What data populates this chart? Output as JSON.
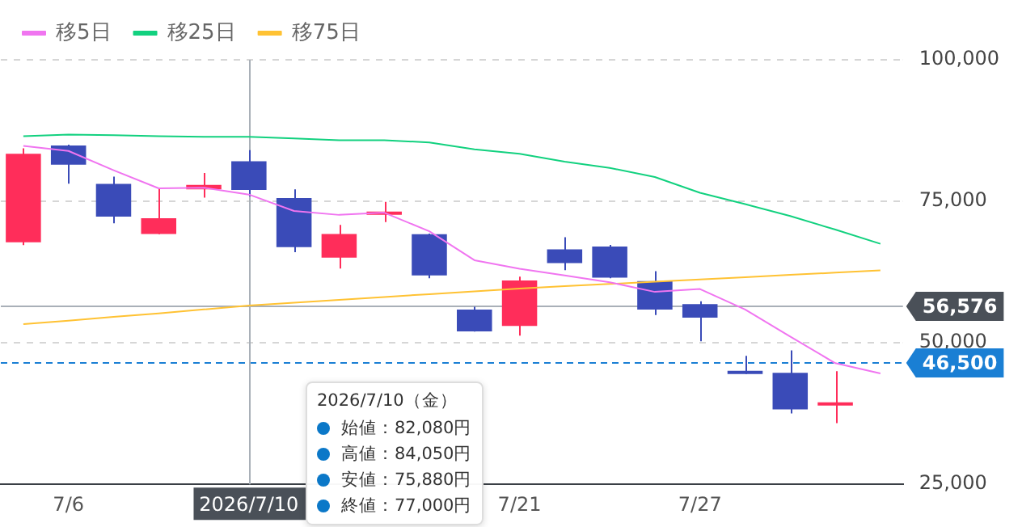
{
  "chart_data": {
    "type": "candlestick",
    "categories": [
      null,
      "7/6",
      null,
      null,
      null,
      "2026/7/10",
      null,
      null,
      null,
      null,
      null,
      "7/21",
      null,
      null,
      null,
      "7/27",
      null,
      null,
      null,
      null
    ],
    "ohlc": [
      [
        67770,
        84360,
        67280,
        83410
      ],
      [
        84850,
        85000,
        78100,
        81470
      ],
      [
        78080,
        79350,
        71130,
        72290
      ],
      [
        69220,
        77330,
        69200,
        72000
      ],
      [
        77100,
        80020,
        75670,
        77900
      ],
      [
        82080,
        84050,
        75880,
        77000
      ],
      [
        75590,
        77120,
        66030,
        66900
      ],
      [
        65060,
        70840,
        63130,
        69220
      ],
      [
        72600,
        74890,
        71330,
        73100
      ],
      [
        69200,
        69300,
        61400,
        61900
      ],
      [
        55890,
        56360,
        52000,
        52010
      ],
      [
        53000,
        61690,
        51260,
        61000
      ],
      [
        66500,
        68640,
        62840,
        64100
      ],
      [
        67000,
        67300,
        61400,
        61500
      ],
      [
        60900,
        62640,
        54910,
        55890
      ],
      [
        56850,
        57340,
        50280,
        54450
      ],
      [
        44800,
        47700,
        44500,
        44500
      ],
      [
        44690,
        48650,
        37530,
        38230
      ],
      [
        38900,
        44980,
        35800,
        39500
      ],
      null
    ],
    "colors": [
      "#ff2d5a",
      "#3a4bb8",
      "#3a4bb8",
      "#ff2d5a",
      "#ff2d5a",
      "#3a4bb8",
      "#3a4bb8",
      "#ff2d5a",
      "#ff2d5a",
      "#3a4bb8",
      "#3a4bb8",
      "#ff2d5a",
      "#3a4bb8",
      "#3a4bb8",
      "#3a4bb8",
      "#3a4bb8",
      "#3a4bb8",
      "#3a4bb8",
      "#ff2d5a",
      "#3a4bb8"
    ],
    "series": [
      {
        "name": "移5日",
        "type": "line",
        "color": "#f075f0",
        "values": [
          84800,
          83900,
          80500,
          77300,
          77400,
          76200,
          73300,
          72600,
          73000,
          69700,
          64600,
          63100,
          61900,
          60700,
          59000,
          59500,
          55900,
          51100,
          46400,
          44600
        ]
      },
      {
        "name": "移25日",
        "type": "line",
        "color": "#12d17f",
        "values": [
          86500,
          86800,
          86700,
          86500,
          86400,
          86400,
          86100,
          85800,
          85800,
          85400,
          84200,
          83400,
          82000,
          80900,
          79300,
          76500,
          74500,
          72400,
          70000,
          67500
        ]
      },
      {
        "name": "移75日",
        "type": "line",
        "color": "#ffc233",
        "values": [
          53300,
          53900,
          54600,
          55200,
          55900,
          56600,
          57100,
          57600,
          58100,
          58600,
          59100,
          59600,
          60000,
          60400,
          60800,
          61200,
          61600,
          62000,
          62400,
          62800
        ]
      }
    ],
    "ylim": [
      25000,
      100000
    ],
    "yticks": [
      {
        "value": 25000,
        "label": "25,000"
      },
      {
        "value": 50000,
        "label": "50,000"
      },
      {
        "value": 75000,
        "label": "75,000"
      },
      {
        "value": 100000,
        "label": "100,000"
      }
    ],
    "grid": "y",
    "legend": "top left",
    "ref_lines": [
      {
        "axis": "y",
        "value": 56576,
        "label": "56,576",
        "color": "#a9b0b8"
      },
      {
        "axis": "y",
        "value": 46500,
        "label": "46,500",
        "color": "#1a7fd4",
        "line_style": "dashed"
      },
      {
        "axis": "x",
        "value": "2026/7/10",
        "label": null,
        "color": "#a9b0b8"
      }
    ],
    "annotations": [
      "2026/7/10（金）",
      "始値：82,080円",
      "高値：84,050円",
      "安値：75,880円",
      "終値：77,000円"
    ]
  }
}
